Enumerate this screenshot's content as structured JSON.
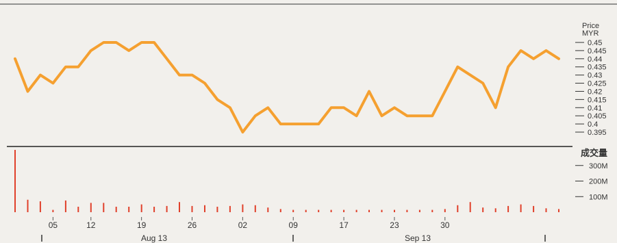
{
  "chart_data": [
    {
      "type": "line",
      "ylabel": "Price\nMYR",
      "y_ticks": [
        "0.45",
        "0.445",
        "0.44",
        "0.435",
        "0.43",
        "0.425",
        "0.42",
        "0.415",
        "0.41",
        "0.405",
        "0.4",
        "0.395"
      ],
      "ylim": [
        0.395,
        0.45
      ],
      "color": "#f5a030",
      "series": [
        {
          "values": [
            0.44,
            0.42,
            0.43,
            0.425,
            0.435,
            0.435,
            0.445,
            0.45,
            0.45,
            0.445,
            0.45,
            0.45,
            0.44,
            0.43,
            0.43,
            0.425,
            0.415,
            0.41,
            0.395,
            0.405,
            0.41,
            0.4,
            0.4,
            0.4,
            0.4,
            0.41,
            0.41,
            0.405,
            0.42,
            0.405,
            0.41,
            0.405,
            0.405,
            0.405,
            0.42,
            0.435,
            0.43,
            0.425,
            0.41,
            0.435,
            0.445,
            0.44,
            0.445,
            0.44
          ]
        }
      ]
    },
    {
      "type": "bar",
      "ylabel": "成交量",
      "y_ticks": [
        "300M",
        "200M",
        "100M"
      ],
      "ylim": [
        0,
        400
      ],
      "color": "#e0402a",
      "values": [
        400,
        80,
        70,
        15,
        75,
        35,
        60,
        60,
        35,
        35,
        50,
        35,
        40,
        65,
        40,
        45,
        35,
        40,
        50,
        45,
        30,
        20,
        15,
        15,
        15,
        15,
        15,
        15,
        15,
        15,
        15,
        15,
        15,
        15,
        20,
        45,
        65,
        30,
        25,
        40,
        50,
        40,
        25,
        20
      ]
    }
  ],
  "x_axis": {
    "day_labels": [
      "05",
      "12",
      "19",
      "26",
      "02",
      "09",
      "17",
      "23",
      "30"
    ],
    "month_labels": [
      "Aug 13",
      "Sep 13"
    ]
  }
}
